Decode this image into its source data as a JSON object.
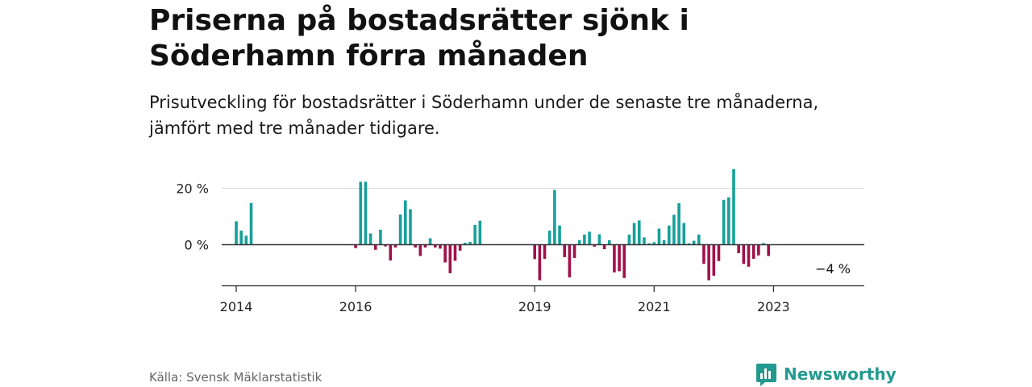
{
  "title": "Priserna på bostadsrätter sjönk i Söderhamn förra månaden",
  "subtitle": "Prisutveckling för bostadsrätter i Söderhamn under de senaste tre månaderna, jämfört med tre månader tidigare.",
  "source": "Källa: Svensk Mäklarstatistik",
  "brand": "Newsworthy",
  "colors": {
    "positive": "#17a09a",
    "negative": "#a0114a",
    "brand": "#239a8f"
  },
  "chart_data": {
    "type": "bar",
    "title": "Priserna på bostadsrätter sjönk i Söderhamn förra månaden",
    "subtitle": "Prisutveckling för bostadsrätter i Söderhamn under de senaste tre månaderna, jämfört med tre månader tidigare.",
    "xlabel": "",
    "ylabel": "",
    "ylim": [
      -15,
      29
    ],
    "y_ticks": [
      0,
      20
    ],
    "y_tick_labels": [
      "0 %",
      "20 %"
    ],
    "x_ticks": [
      "2014",
      "2016",
      "2019",
      "2021",
      "2023"
    ],
    "annotation": "−4 %",
    "grid": true,
    "legend": "none",
    "series": [
      {
        "data": [
          [
            "2014-01",
            8.3
          ],
          [
            "2014-02",
            5.0
          ],
          [
            "2014-03",
            3.2
          ],
          [
            "2014-04",
            14.8
          ],
          [
            "2016-01",
            -1.2
          ],
          [
            "2016-02",
            22.3
          ],
          [
            "2016-03",
            22.3
          ],
          [
            "2016-04",
            4.0
          ],
          [
            "2016-05",
            -1.8
          ],
          [
            "2016-06",
            5.3
          ],
          [
            "2016-07",
            -0.6
          ],
          [
            "2016-08",
            -5.6
          ],
          [
            "2016-09",
            -1.0
          ],
          [
            "2016-10",
            10.7
          ],
          [
            "2016-11",
            15.7
          ],
          [
            "2016-12",
            12.6
          ],
          [
            "2017-01",
            -1.0
          ],
          [
            "2017-02",
            -4.0
          ],
          [
            "2017-03",
            -1.0
          ],
          [
            "2017-04",
            2.3
          ],
          [
            "2017-05",
            -1.0
          ],
          [
            "2017-06",
            -1.4
          ],
          [
            "2017-07",
            -6.3
          ],
          [
            "2017-08",
            -10.1
          ],
          [
            "2017-09",
            -5.7
          ],
          [
            "2017-10",
            -2.1
          ],
          [
            "2017-11",
            0.7
          ],
          [
            "2017-12",
            1.0
          ],
          [
            "2018-01",
            7.0
          ],
          [
            "2018-02",
            8.5
          ],
          [
            "2019-01",
            -5.1
          ],
          [
            "2019-02",
            -12.6
          ],
          [
            "2019-03",
            -5.0
          ],
          [
            "2019-04",
            5.0
          ],
          [
            "2019-05",
            19.4
          ],
          [
            "2019-06",
            6.8
          ],
          [
            "2019-07",
            -4.4
          ],
          [
            "2019-08",
            -11.6
          ],
          [
            "2019-09",
            -4.7
          ],
          [
            "2019-10",
            1.6
          ],
          [
            "2019-11",
            3.6
          ],
          [
            "2019-12",
            4.6
          ],
          [
            "2020-01",
            -0.7
          ],
          [
            "2020-02",
            3.7
          ],
          [
            "2020-03",
            -1.6
          ],
          [
            "2020-04",
            1.6
          ],
          [
            "2020-05",
            -9.8
          ],
          [
            "2020-06",
            -9.4
          ],
          [
            "2020-07",
            -11.8
          ],
          [
            "2020-08",
            3.6
          ],
          [
            "2020-09",
            7.7
          ],
          [
            "2020-10",
            8.6
          ],
          [
            "2020-11",
            2.6
          ],
          [
            "2020-12",
            0.5
          ],
          [
            "2021-01",
            0.9
          ],
          [
            "2021-02",
            5.7
          ],
          [
            "2021-03",
            1.6
          ],
          [
            "2021-04",
            6.8
          ],
          [
            "2021-05",
            10.6
          ],
          [
            "2021-06",
            14.7
          ],
          [
            "2021-07",
            7.7
          ],
          [
            "2021-08",
            0.5
          ],
          [
            "2021-09",
            1.4
          ],
          [
            "2021-10",
            3.6
          ],
          [
            "2021-11",
            -6.8
          ],
          [
            "2021-12",
            -12.6
          ],
          [
            "2022-01",
            -11.0
          ],
          [
            "2022-02",
            -5.8
          ],
          [
            "2022-03",
            15.9
          ],
          [
            "2022-04",
            16.8
          ],
          [
            "2022-05",
            26.8
          ],
          [
            "2022-06",
            -3.0
          ],
          [
            "2022-07",
            -6.8
          ],
          [
            "2022-08",
            -7.8
          ],
          [
            "2022-09",
            -5.0
          ],
          [
            "2022-10",
            -3.8
          ],
          [
            "2022-11",
            0.6
          ],
          [
            "2022-12",
            -4.0
          ]
        ]
      }
    ]
  }
}
